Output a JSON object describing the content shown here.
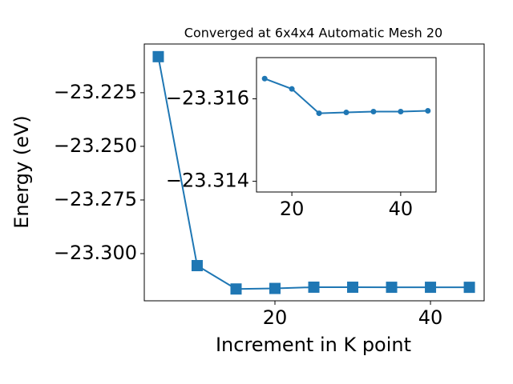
{
  "chart_data": [
    {
      "type": "line",
      "title": "Converged at 6x4x4 Automatic Mesh 20",
      "x_label": "Increment in K point",
      "y_label": "Energy (eV)",
      "x": [
        5,
        10,
        15,
        20,
        25,
        30,
        35,
        40,
        45
      ],
      "series": [
        {
          "color": "#1f77b4",
          "marker": "square",
          "values": [
            -23.2082,
            -23.3056,
            -23.31649,
            -23.31624,
            -23.31565,
            -23.31567,
            -23.31569,
            -23.31569,
            -23.31571
          ]
        }
      ],
      "xlim": [
        3.2,
        46.9
      ],
      "ylim": [
        -23.322,
        -23.2023
      ],
      "xticks": [
        20,
        40
      ],
      "yticks": [
        {
          "value": -23.225,
          "label": "−23.225"
        },
        {
          "value": -23.25,
          "label": "−23.250"
        },
        {
          "value": -23.275,
          "label": "−23.275"
        },
        {
          "value": -23.3,
          "label": "−23.300"
        }
      ]
    },
    {
      "type": "line",
      "x": [
        15,
        20,
        25,
        30,
        35,
        40,
        45
      ],
      "series": [
        {
          "color": "#1f77b4",
          "marker": "circle",
          "values": [
            -23.31649,
            -23.31624,
            -23.31565,
            -23.31567,
            -23.31569,
            -23.31569,
            -23.31571
          ]
        }
      ],
      "xlim": [
        13.5,
        46.5
      ],
      "ylim": [
        -23.31374,
        -23.317
      ],
      "xticks": [
        20,
        40
      ],
      "yticks": [
        {
          "value": -23.316,
          "label": "−23.316"
        },
        {
          "value": -23.314,
          "label": "−23.314"
        }
      ]
    }
  ]
}
